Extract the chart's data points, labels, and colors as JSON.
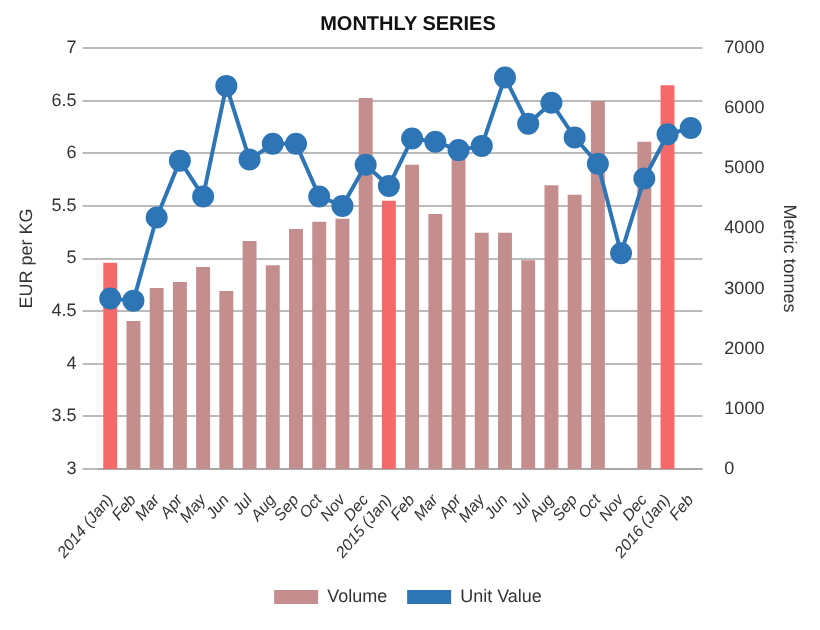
{
  "chart_data": {
    "type": "bar",
    "title": "MONTHLY SERIES",
    "ylabel": "EUR per KG",
    "y2label": "Metric tonnes",
    "categories": [
      "2014 (Jan)",
      "Feb",
      "Mar",
      "Apr",
      "May",
      "Jun",
      "Jul",
      "Aug",
      "Sep",
      "Oct",
      "Nov",
      "Dec",
      "2015 (Jan)",
      "Feb",
      "Mar",
      "Apr",
      "May",
      "Jun",
      "Jul",
      "Aug",
      "Sep",
      "Oct",
      "Nov",
      "Dec",
      "2016 (Jan)",
      "Feb"
    ],
    "series": [
      {
        "name": "Volume",
        "axis": "y2",
        "color": "#c48e8e",
        "colors": [
          "#f46a6a",
          "#c48e8e",
          "#c48e8e",
          "#c48e8e",
          "#c48e8e",
          "#c48e8e",
          "#c48e8e",
          "#c48e8e",
          "#c48e8e",
          "#c48e8e",
          "#c48e8e",
          "#c48e8e",
          "#f46a6a",
          "#c48e8e",
          "#c48e8e",
          "#c48e8e",
          "#c48e8e",
          "#c48e8e",
          "#c48e8e",
          "#c48e8e",
          "#c48e8e",
          "#c48e8e",
          "#c48e8e",
          "#c48e8e",
          "#f46a6a",
          "#c48e8e"
        ],
        "values": [
          3430,
          2460,
          3010,
          3110,
          3360,
          2960,
          3790,
          3390,
          3990,
          4110,
          4160,
          6170,
          4460,
          5060,
          4240,
          5230,
          3930,
          3930,
          3470,
          4720,
          4560,
          6120,
          null,
          5440,
          6380,
          null
        ]
      },
      {
        "name": "Unit Value",
        "type": "line",
        "axis": "y",
        "color": "#2e75b6",
        "values": [
          4.62,
          4.6,
          5.39,
          5.93,
          5.59,
          6.64,
          5.94,
          6.09,
          6.09,
          5.59,
          5.5,
          5.89,
          5.69,
          6.14,
          6.11,
          6.03,
          6.07,
          6.72,
          6.28,
          6.48,
          6.15,
          5.9,
          5.05,
          5.76,
          6.18,
          6.24
        ]
      }
    ],
    "ylim": [
      3,
      7
    ],
    "yticks": [
      3,
      3.5,
      4,
      4.5,
      5,
      5.5,
      6,
      6.5,
      7
    ],
    "y2lim": [
      0,
      7000
    ],
    "y2ticks": [
      0,
      1000,
      2000,
      3000,
      4000,
      5000,
      6000,
      7000
    ],
    "grid": "y",
    "legend": "bottom",
    "marker": "circle",
    "line_style": "solid"
  }
}
